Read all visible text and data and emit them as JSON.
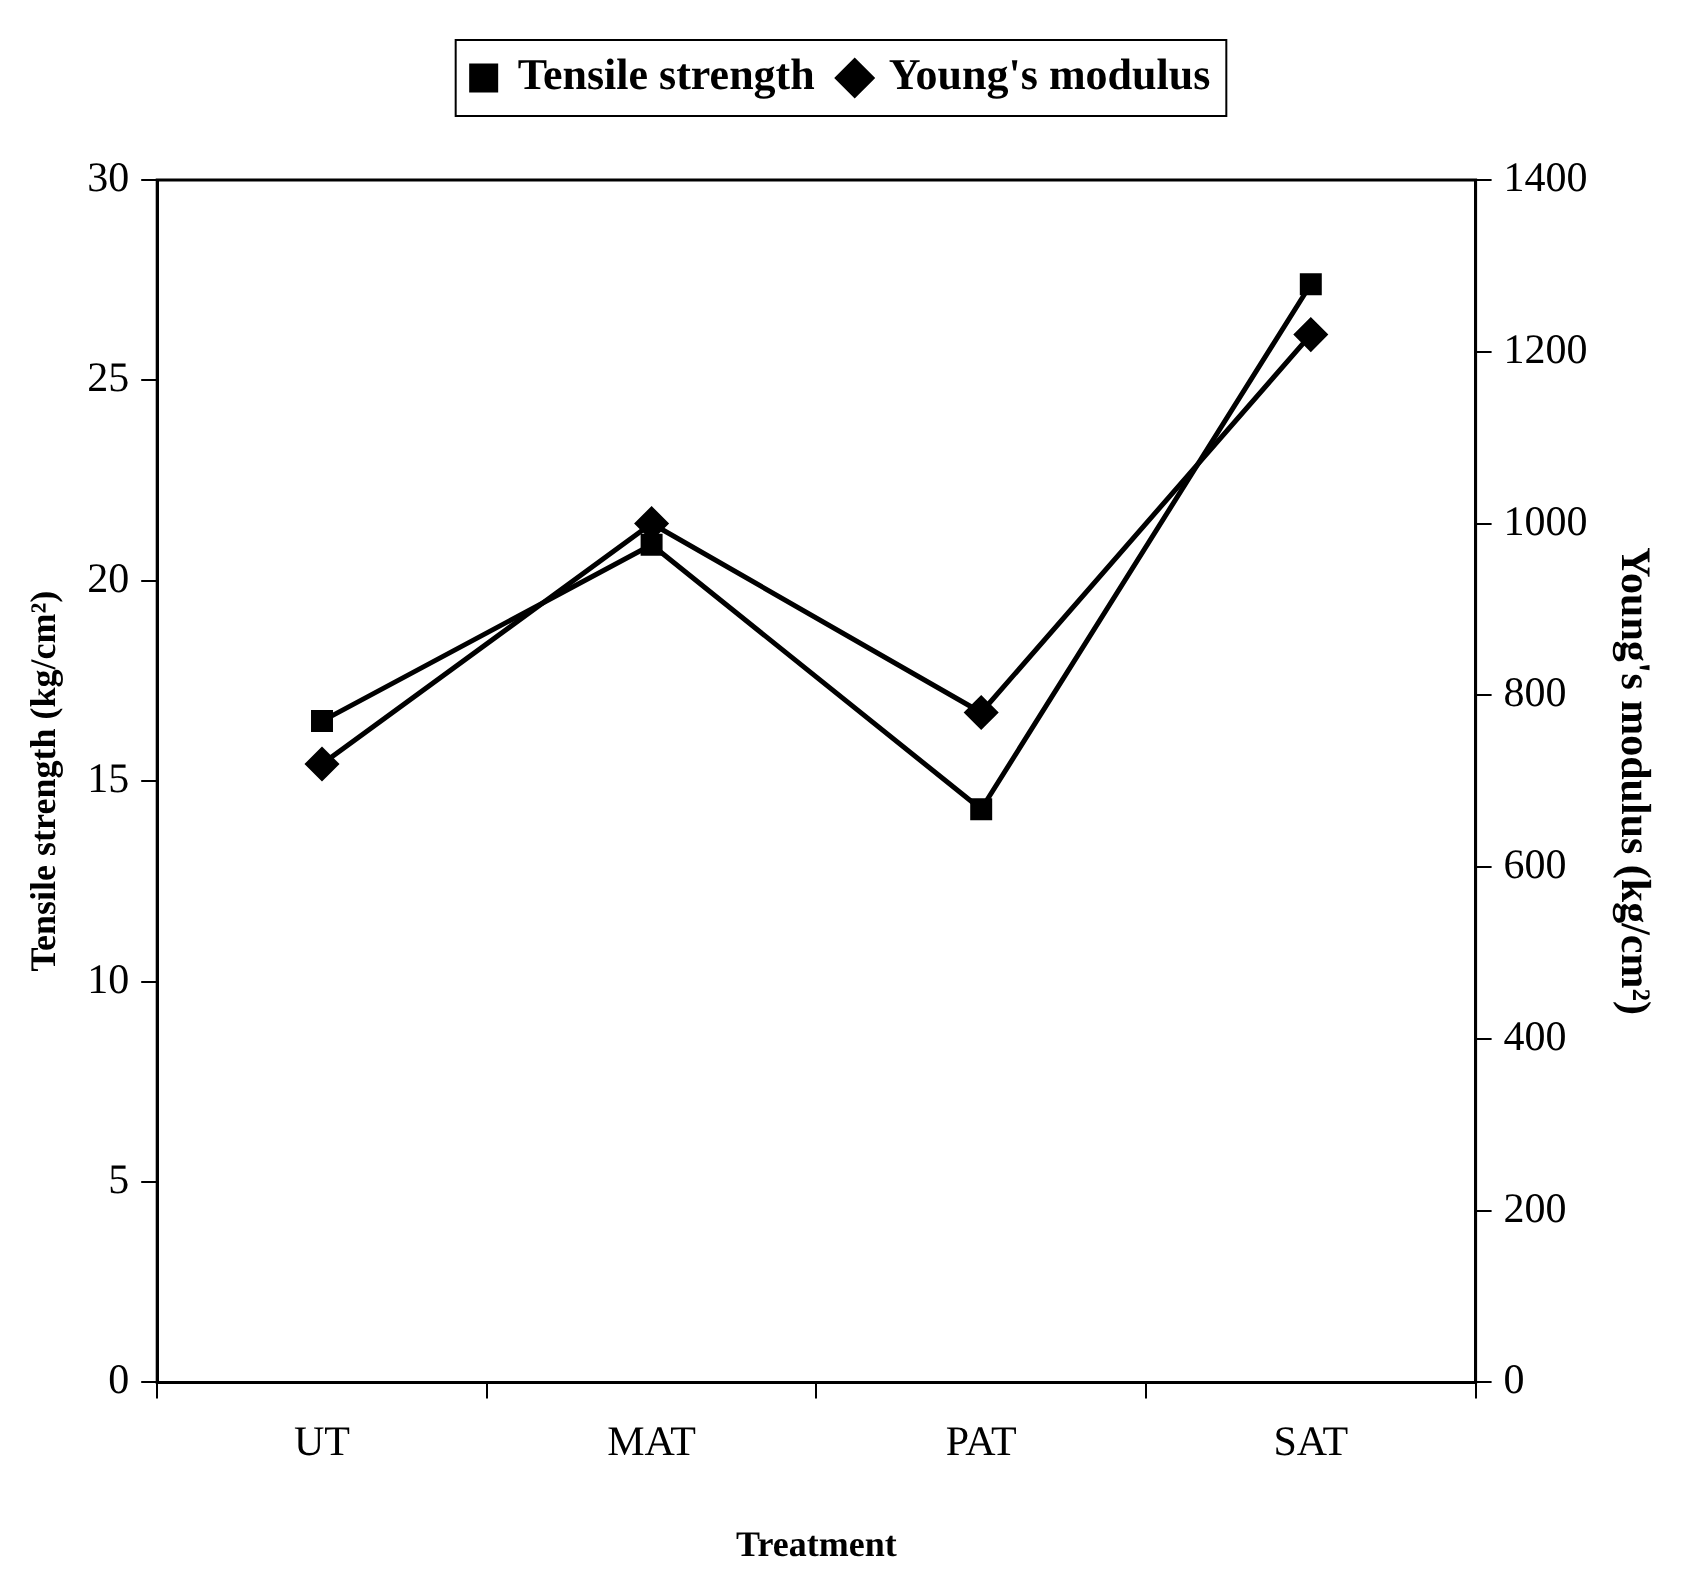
{
  "chart_data": {
    "type": "line",
    "xlabel": "Treatment",
    "ylabel": "Tensile strength (kg/cm²)",
    "y2label": "Young's modulus (kg/cm²)",
    "categories": [
      "UT",
      "MAT",
      "PAT",
      "SAT"
    ],
    "series": [
      {
        "name": "Tensile strength",
        "color": "#000000",
        "marker": "square",
        "values": [
          16.5,
          20.9,
          14.3,
          27.4
        ]
      },
      {
        "name": "Young's modulus",
        "color": "#000000",
        "marker": "diamond",
        "axis": "y2",
        "values": [
          720,
          1000,
          780,
          1220
        ]
      }
    ],
    "ylim": [
      0,
      30
    ],
    "yticks": [
      0,
      5,
      10,
      15,
      20,
      25,
      30
    ],
    "y2lim": [
      0,
      1400
    ],
    "y2ticks": [
      0,
      200,
      400,
      600,
      800,
      1000,
      1200,
      1400
    ],
    "grid": false,
    "legend": "top",
    "line_style": "solid"
  }
}
